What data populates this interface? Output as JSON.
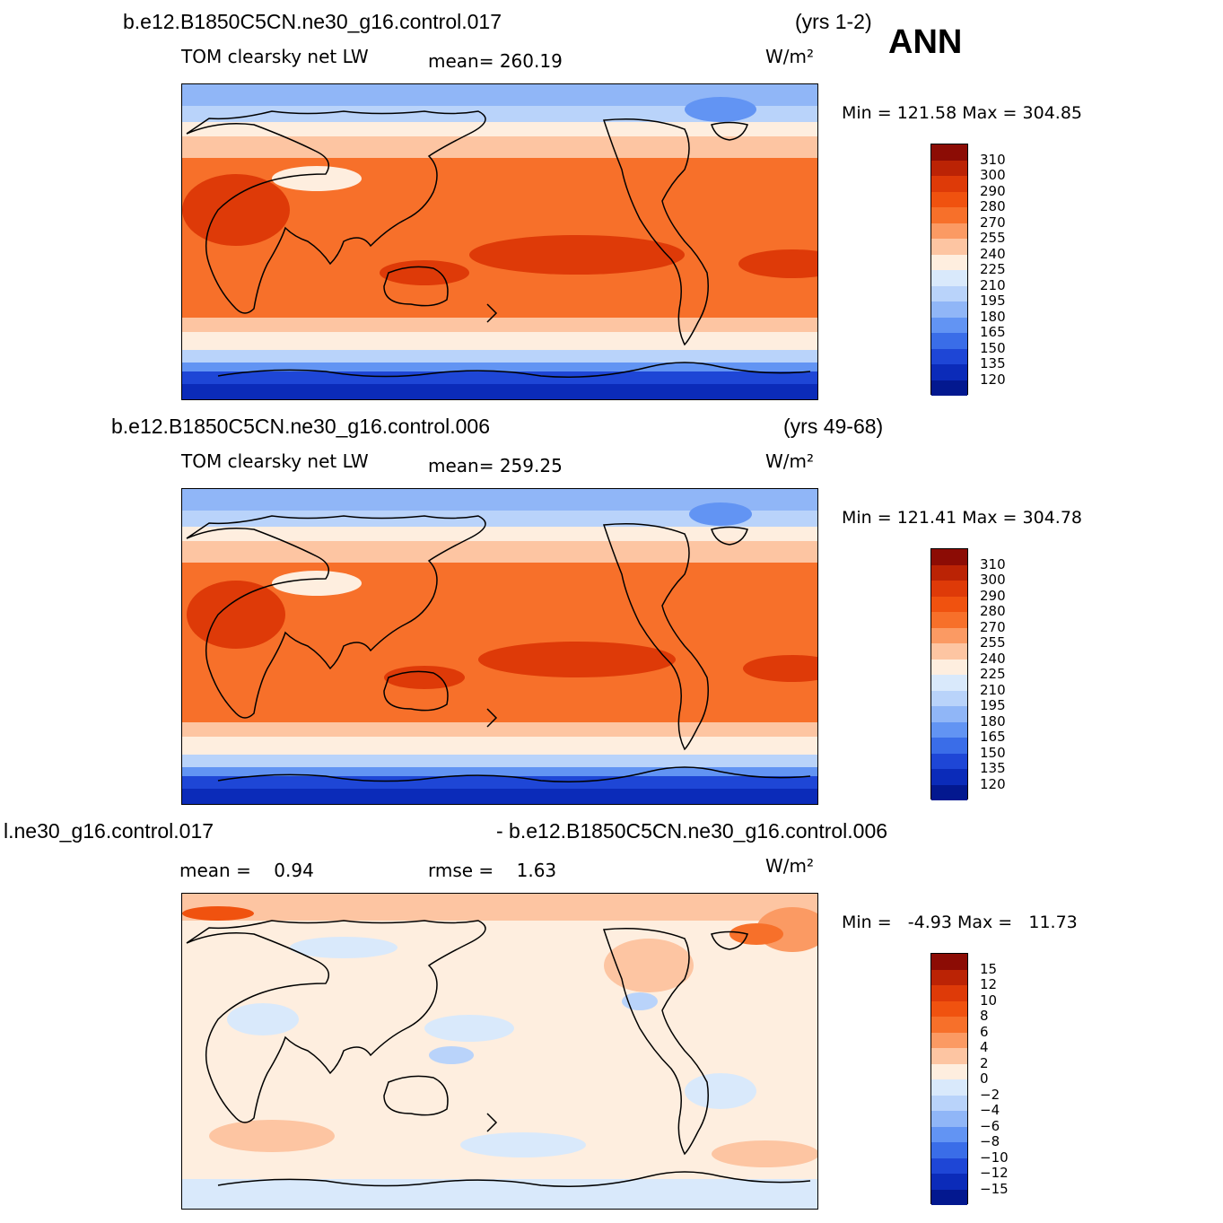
{
  "season": "ANN",
  "units": "W/m²",
  "panels": [
    {
      "case_name": "b.e12.B1850C5CN.ne30_g16.control.017",
      "years": "(yrs 1-2)",
      "variable": "TOM clearsky net LW",
      "mean_text": "mean= 260.19",
      "minmax_text": "Min = 121.58 Max = 304.85"
    },
    {
      "case_name": "b.e12.B1850C5CN.ne30_g16.control.006",
      "years": "(yrs 49-68)",
      "variable": "TOM clearsky net LW",
      "mean_text": "mean= 259.25",
      "minmax_text": "Min = 121.41 Max = 304.78"
    },
    {
      "case_name": "l.ne30_g16.control.017",
      "case_name_b": "- b.e12.B1850C5CN.ne30_g16.control.006",
      "mean_text": "mean =    0.94",
      "rmse_text": "rmse =    1.63",
      "minmax_text": "Min =   -4.93 Max =   11.73"
    }
  ],
  "colorbar_abs": {
    "labels": [
      "310",
      "300",
      "290",
      "280",
      "270",
      "255",
      "240",
      "225",
      "210",
      "195",
      "180",
      "165",
      "150",
      "135",
      "120"
    ],
    "colors": [
      "#8c0c05",
      "#bb2305",
      "#de3a08",
      "#f0520f",
      "#f7702a",
      "#fb9a63",
      "#fdc5a2",
      "#feeedf",
      "#d9e9fb",
      "#b9d3fa",
      "#90b6f7",
      "#6294f3",
      "#3a6de8",
      "#1e46d6",
      "#0b2bb9",
      "#03188f"
    ]
  },
  "colorbar_diff": {
    "labels": [
      "15",
      "12",
      "10",
      "8",
      "6",
      "4",
      "2",
      "0",
      "−2",
      "−4",
      "−6",
      "−8",
      "−10",
      "−12",
      "−15"
    ],
    "colors": [
      "#8c0c05",
      "#bb2305",
      "#de3a08",
      "#f0520f",
      "#f7702a",
      "#fb9a63",
      "#fdc5a2",
      "#feeedf",
      "#d9e9fb",
      "#b9d3fa",
      "#90b6f7",
      "#6294f3",
      "#3a6de8",
      "#1e46d6",
      "#0b2bb9",
      "#03188f"
    ]
  }
}
